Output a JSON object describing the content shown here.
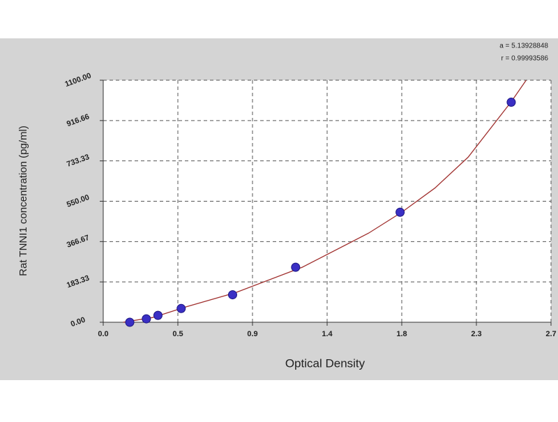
{
  "chart_data": {
    "type": "scatter",
    "xlabel": "Optical Density",
    "ylabel": "Rat TNNI1 concentration (pg/ml)",
    "annotations": [
      "a = 5.13928848",
      "r = 0.99993586"
    ],
    "xlim": [
      0,
      2.7
    ],
    "xticks": [
      {
        "value": 0,
        "label": "0.0"
      },
      {
        "value": 0.45,
        "label": "0.5"
      },
      {
        "value": 0.9,
        "label": "0.9"
      },
      {
        "value": 1.35,
        "label": "1.4"
      },
      {
        "value": 1.8,
        "label": "1.8"
      },
      {
        "value": 2.25,
        "label": "2.3"
      },
      {
        "value": 2.7,
        "label": "2.7"
      }
    ],
    "ylim": [
      0,
      1100
    ],
    "yticks": [
      {
        "value": 0,
        "label": "0.00"
      },
      183.33,
      366.67,
      {
        "value": 550,
        "label": "550.00"
      },
      733.33,
      916.66,
      {
        "value": 1100,
        "label": "1100.00"
      }
    ],
    "grid": true,
    "points": {
      "color": "#3a2fc4",
      "x": [
        0.16,
        0.26,
        0.33,
        0.47,
        0.78,
        1.16,
        1.79,
        2.46
      ],
      "y": [
        0,
        15.6,
        31.25,
        62.5,
        125,
        250,
        500,
        1000
      ]
    },
    "fit": {
      "color": "#a0302e",
      "x": [
        0.12,
        0.3,
        0.5,
        0.8,
        1.2,
        1.6,
        1.8,
        2.0,
        2.2,
        2.46,
        2.55
      ],
      "y": [
        0,
        22,
        70,
        135,
        250,
        405,
        500,
        610,
        750,
        1002,
        1100
      ]
    }
  }
}
